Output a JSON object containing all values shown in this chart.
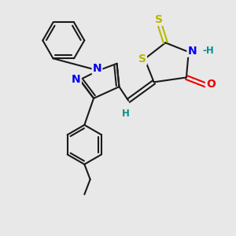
{
  "bg_color": "#e8e8e8",
  "bond_color": "#1a1a1a",
  "bond_width": 1.5,
  "atom_colors": {
    "S": "#b8b800",
    "N": "#0000ee",
    "O": "#ee0000",
    "H": "#009090",
    "C": "#1a1a1a"
  },
  "font_size_atom": 10,
  "font_size_h": 8.5
}
